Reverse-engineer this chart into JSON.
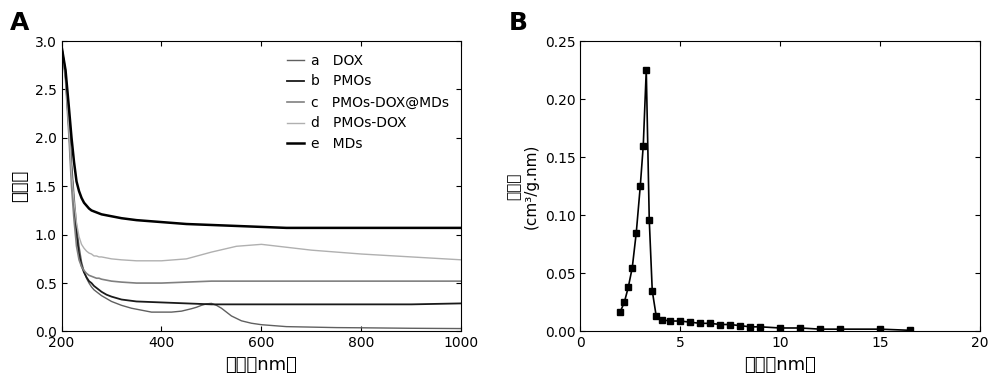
{
  "panel_A": {
    "title": "A",
    "xlabel": "波长（nm）",
    "ylabel": "吸光度",
    "xlim": [
      200,
      1000
    ],
    "ylim": [
      0.0,
      3.0
    ],
    "yticks": [
      0.0,
      0.5,
      1.0,
      1.5,
      2.0,
      2.5,
      3.0
    ],
    "xticks": [
      200,
      400,
      600,
      800,
      1000
    ],
    "legend_labels": [
      "a   DOX",
      "b   PMOs",
      "c   PMOs-DOX@MDs",
      "d   PMOs-DOX",
      "e   MDs"
    ],
    "curves": {
      "a_DOX": {
        "color": "#606060",
        "lw": 1.0,
        "x": [
          200,
          208,
          215,
          220,
          225,
          230,
          235,
          240,
          245,
          250,
          255,
          260,
          265,
          270,
          275,
          280,
          290,
          300,
          320,
          340,
          360,
          380,
          400,
          420,
          440,
          460,
          470,
          480,
          490,
          500,
          510,
          520,
          530,
          540,
          560,
          580,
          600,
          650,
          700,
          750,
          800,
          900,
          1000
        ],
        "y": [
          2.95,
          2.7,
          2.2,
          1.75,
          1.4,
          1.1,
          0.88,
          0.72,
          0.62,
          0.55,
          0.5,
          0.46,
          0.43,
          0.41,
          0.39,
          0.37,
          0.34,
          0.31,
          0.27,
          0.24,
          0.22,
          0.2,
          0.2,
          0.2,
          0.21,
          0.235,
          0.25,
          0.27,
          0.285,
          0.29,
          0.27,
          0.24,
          0.2,
          0.16,
          0.11,
          0.085,
          0.07,
          0.05,
          0.045,
          0.04,
          0.038,
          0.033,
          0.03
        ]
      },
      "b_PMOs": {
        "color": "#1a1a1a",
        "lw": 1.3,
        "x": [
          200,
          208,
          215,
          220,
          225,
          230,
          235,
          240,
          245,
          250,
          255,
          260,
          265,
          270,
          275,
          280,
          290,
          300,
          320,
          350,
          400,
          450,
          500,
          550,
          600,
          650,
          700,
          750,
          800,
          900,
          1000
        ],
        "y": [
          2.95,
          2.65,
          2.1,
          1.65,
          1.3,
          1.0,
          0.8,
          0.68,
          0.61,
          0.56,
          0.52,
          0.5,
          0.47,
          0.45,
          0.43,
          0.41,
          0.38,
          0.36,
          0.33,
          0.31,
          0.3,
          0.29,
          0.28,
          0.28,
          0.28,
          0.28,
          0.28,
          0.28,
          0.28,
          0.28,
          0.29
        ]
      },
      "c_PMOs_DOX_MDs": {
        "color": "#808080",
        "lw": 1.2,
        "x": [
          200,
          208,
          215,
          220,
          225,
          230,
          235,
          240,
          245,
          250,
          255,
          260,
          265,
          270,
          275,
          280,
          290,
          300,
          320,
          350,
          400,
          450,
          500,
          550,
          600,
          650,
          700,
          750,
          800,
          900,
          1000
        ],
        "y": [
          2.95,
          2.6,
          2.0,
          1.5,
          1.15,
          0.88,
          0.74,
          0.67,
          0.63,
          0.6,
          0.58,
          0.57,
          0.56,
          0.55,
          0.55,
          0.54,
          0.53,
          0.52,
          0.51,
          0.5,
          0.5,
          0.51,
          0.52,
          0.52,
          0.52,
          0.52,
          0.52,
          0.52,
          0.52,
          0.52,
          0.52
        ]
      },
      "d_PMOs_DOX": {
        "color": "#b0b0b0",
        "lw": 1.0,
        "x": [
          200,
          208,
          215,
          220,
          225,
          230,
          235,
          240,
          245,
          250,
          255,
          260,
          265,
          270,
          275,
          280,
          290,
          300,
          320,
          350,
          400,
          450,
          500,
          550,
          600,
          650,
          700,
          750,
          800,
          900,
          1000
        ],
        "y": [
          2.95,
          2.65,
          2.1,
          1.65,
          1.35,
          1.12,
          0.98,
          0.9,
          0.86,
          0.83,
          0.81,
          0.8,
          0.78,
          0.78,
          0.77,
          0.77,
          0.76,
          0.75,
          0.74,
          0.73,
          0.73,
          0.75,
          0.82,
          0.88,
          0.9,
          0.87,
          0.84,
          0.82,
          0.8,
          0.77,
          0.74
        ]
      },
      "e_MDs": {
        "color": "#000000",
        "lw": 1.8,
        "x": [
          200,
          208,
          215,
          220,
          225,
          230,
          235,
          240,
          245,
          250,
          255,
          260,
          265,
          270,
          275,
          280,
          290,
          300,
          320,
          350,
          400,
          450,
          500,
          550,
          600,
          650,
          700,
          750,
          800,
          900,
          1000
        ],
        "y": [
          2.95,
          2.7,
          2.3,
          2.0,
          1.75,
          1.55,
          1.45,
          1.38,
          1.33,
          1.3,
          1.27,
          1.25,
          1.24,
          1.23,
          1.22,
          1.21,
          1.2,
          1.19,
          1.17,
          1.15,
          1.13,
          1.11,
          1.1,
          1.09,
          1.08,
          1.07,
          1.07,
          1.07,
          1.07,
          1.07,
          1.07
        ]
      }
    }
  },
  "panel_B": {
    "title": "B",
    "xlabel": "波长（nm）",
    "ylabel": "孔面积（cm³/g·nm）",
    "ylabel_line1": "孔面积",
    "ylabel_line2": "(cm³/g.nm)",
    "xlim": [
      0,
      20
    ],
    "ylim": [
      0.0,
      0.25
    ],
    "xticks": [
      0,
      5,
      10,
      15,
      20
    ],
    "yticks": [
      0.0,
      0.05,
      0.1,
      0.15,
      0.2,
      0.25
    ],
    "x": [
      2.0,
      2.2,
      2.4,
      2.6,
      2.8,
      3.0,
      3.15,
      3.3,
      3.45,
      3.6,
      3.8,
      4.1,
      4.5,
      5.0,
      5.5,
      6.0,
      6.5,
      7.0,
      7.5,
      8.0,
      8.5,
      9.0,
      10.0,
      11.0,
      12.0,
      13.0,
      15.0,
      16.5
    ],
    "y": [
      0.017,
      0.025,
      0.038,
      0.055,
      0.085,
      0.125,
      0.16,
      0.225,
      0.096,
      0.035,
      0.013,
      0.01,
      0.009,
      0.009,
      0.008,
      0.007,
      0.007,
      0.006,
      0.006,
      0.005,
      0.004,
      0.004,
      0.003,
      0.003,
      0.002,
      0.002,
      0.002,
      0.001
    ],
    "marker": "s",
    "markersize": 4,
    "color": "#000000",
    "lw": 1.2
  }
}
